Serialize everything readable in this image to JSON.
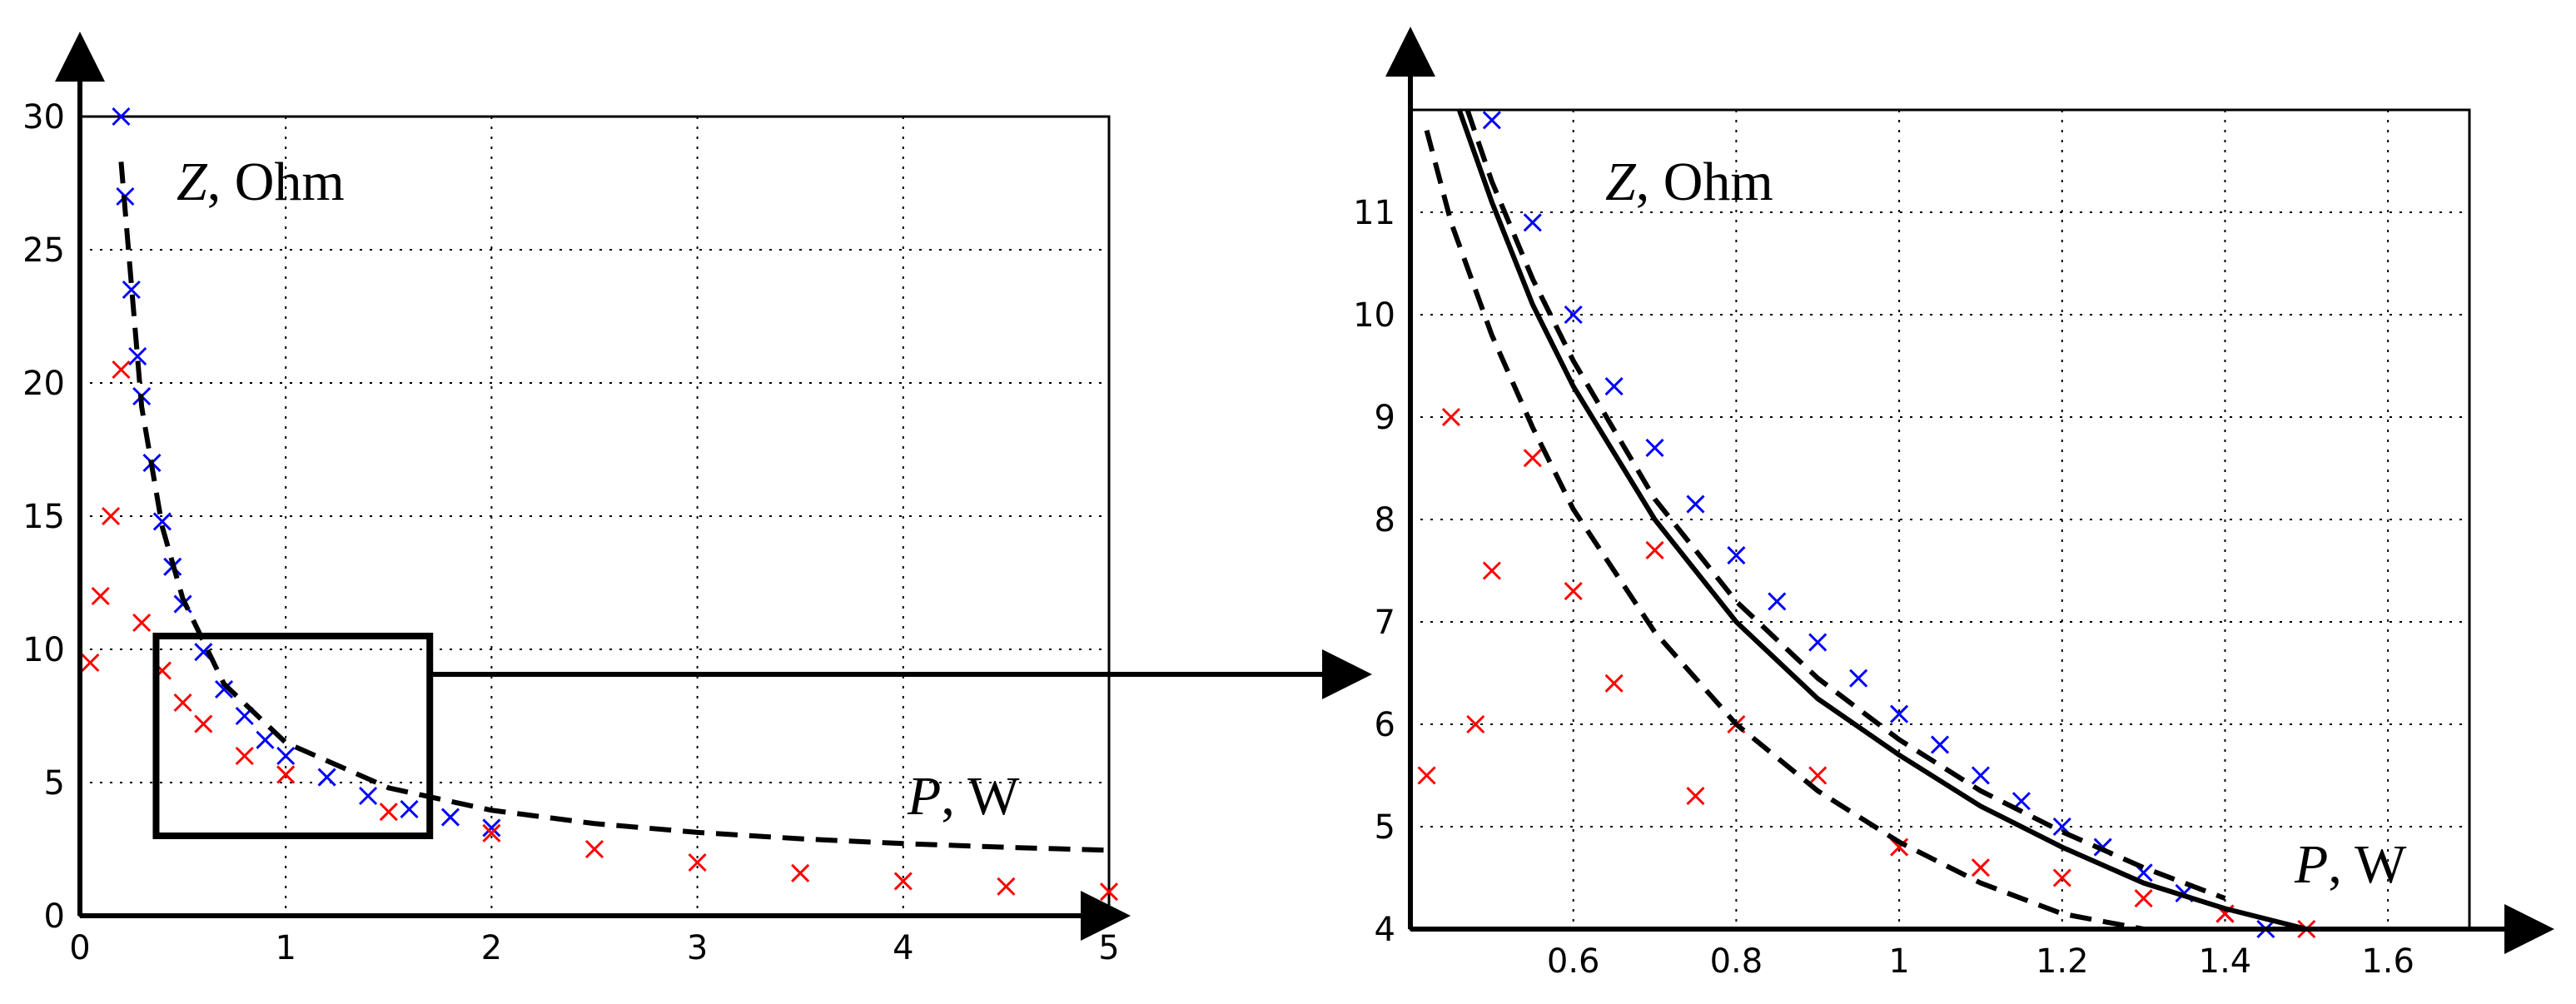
{
  "chart_data": [
    {
      "type": "scatter",
      "title": "",
      "xlabel_var": "P",
      "xlabel_unit": ", W",
      "ylabel_var": "Z",
      "ylabel_unit": ", Ohm",
      "xlim": [
        0,
        5
      ],
      "ylim": [
        0,
        30
      ],
      "xticks": [
        0,
        1,
        2,
        3,
        4,
        5
      ],
      "xtick_labels": [
        "0",
        "1",
        "2",
        "3",
        "4",
        "5"
      ],
      "yticks": [
        0,
        5,
        10,
        15,
        20,
        25,
        30
      ],
      "ytick_labels": [
        "0",
        "5",
        "10",
        "15",
        "20",
        "25",
        "30"
      ],
      "grid": true,
      "zoom_box": {
        "x": [
          0.37,
          1.7
        ],
        "y": [
          3,
          10.5
        ]
      },
      "series": [
        {
          "name": "blue measurements",
          "color": "#0000ff",
          "marker": "x",
          "x": [
            0.2,
            0.22,
            0.25,
            0.28,
            0.3,
            0.35,
            0.4,
            0.45,
            0.5,
            0.6,
            0.7,
            0.8,
            0.9,
            1.0,
            1.2,
            1.4,
            1.6,
            1.8,
            2.0
          ],
          "y": [
            30,
            27,
            23.5,
            21,
            19.5,
            17,
            14.8,
            13.1,
            11.7,
            9.9,
            8.5,
            7.5,
            6.6,
            6.0,
            5.2,
            4.5,
            4.0,
            3.7,
            3.3
          ]
        },
        {
          "name": "red measurements",
          "color": "#ff0000",
          "marker": "x",
          "x": [
            0.05,
            0.1,
            0.15,
            0.2,
            0.3,
            0.4,
            0.5,
            0.6,
            0.8,
            1.0,
            1.5,
            2.0,
            2.5,
            3.0,
            3.5,
            4.0,
            4.5,
            5.0
          ],
          "y": [
            9.5,
            12,
            15,
            20.5,
            11,
            9.2,
            8,
            7.2,
            6,
            5.3,
            3.9,
            3.1,
            2.5,
            2.0,
            1.6,
            1.3,
            1.1,
            0.9
          ]
        },
        {
          "name": "dashed curve",
          "color": "#000000",
          "line": "dashed",
          "x": [
            0.2,
            0.3,
            0.4,
            0.5,
            0.7,
            1.0,
            1.5,
            2.0,
            2.5,
            3.0,
            3.5,
            4.0,
            4.5,
            5.0
          ],
          "y": [
            28.3,
            19.1,
            14.6,
            11.9,
            8.7,
            6.5,
            4.8,
            3.96,
            3.46,
            3.13,
            2.89,
            2.71,
            2.57,
            2.46
          ]
        }
      ]
    },
    {
      "type": "scatter",
      "title": "",
      "xlabel_var": "P",
      "xlabel_unit": ", W",
      "ylabel_var": "Z",
      "ylabel_unit": ", Ohm",
      "xlim": [
        0.4,
        1.7
      ],
      "ylim": [
        4,
        12
      ],
      "xticks": [
        0.6,
        0.8,
        1.0,
        1.2,
        1.4,
        1.6
      ],
      "xtick_labels": [
        "0.6",
        "0.8",
        "1",
        "1.2",
        "1.4",
        "1.6"
      ],
      "yticks": [
        4,
        5,
        6,
        7,
        8,
        9,
        10,
        11
      ],
      "ytick_labels": [
        "4",
        "5",
        "6",
        "7",
        "8",
        "9",
        "10",
        "11"
      ],
      "grid": true,
      "series": [
        {
          "name": "blue measurements",
          "color": "#0000ff",
          "marker": "x",
          "x": [
            0.5,
            0.55,
            0.6,
            0.65,
            0.7,
            0.75,
            0.8,
            0.85,
            0.9,
            0.95,
            1.0,
            1.05,
            1.1,
            1.15,
            1.2,
            1.25,
            1.3,
            1.35,
            1.4,
            1.45
          ],
          "y": [
            11.9,
            10.9,
            10.0,
            9.3,
            8.7,
            8.15,
            7.65,
            7.2,
            6.8,
            6.45,
            6.1,
            5.8,
            5.5,
            5.25,
            5.0,
            4.8,
            4.55,
            4.35,
            4.15,
            4.0
          ]
        },
        {
          "name": "red measurements",
          "color": "#ff0000",
          "marker": "x",
          "x": [
            0.42,
            0.45,
            0.48,
            0.5,
            0.55,
            0.6,
            0.65,
            0.7,
            0.75,
            0.8,
            0.9,
            1.0,
            1.1,
            1.2,
            1.3,
            1.4,
            1.5
          ],
          "y": [
            5.5,
            9.0,
            6.0,
            7.5,
            8.6,
            7.3,
            6.4,
            7.7,
            5.3,
            6.0,
            5.5,
            4.8,
            4.6,
            4.5,
            4.3,
            4.15,
            4.0
          ]
        },
        {
          "name": "solid curve",
          "color": "#000000",
          "line": "solid",
          "x": [
            0.46,
            0.5,
            0.55,
            0.6,
            0.7,
            0.8,
            0.9,
            1.0,
            1.1,
            1.2,
            1.3,
            1.4,
            1.5
          ],
          "y": [
            12.0,
            11.1,
            10.1,
            9.3,
            8.0,
            7.0,
            6.25,
            5.7,
            5.2,
            4.8,
            4.45,
            4.2,
            4.0
          ]
        },
        {
          "name": "dashed curve upper",
          "color": "#000000",
          "line": "dashed",
          "x": [
            0.47,
            0.5,
            0.55,
            0.6,
            0.7,
            0.8,
            0.9,
            1.0,
            1.1,
            1.2,
            1.3,
            1.4
          ],
          "y": [
            12.0,
            11.3,
            10.35,
            9.55,
            8.2,
            7.2,
            6.45,
            5.85,
            5.35,
            4.95,
            4.6,
            4.3
          ]
        },
        {
          "name": "dashed curve lower",
          "color": "#000000",
          "line": "dashed",
          "x": [
            0.42,
            0.45,
            0.5,
            0.55,
            0.6,
            0.7,
            0.8,
            0.9,
            1.0,
            1.1,
            1.2,
            1.3
          ],
          "y": [
            11.8,
            10.9,
            9.8,
            8.9,
            8.1,
            6.9,
            6.0,
            5.35,
            4.85,
            4.45,
            4.15,
            4.0
          ]
        }
      ]
    }
  ]
}
